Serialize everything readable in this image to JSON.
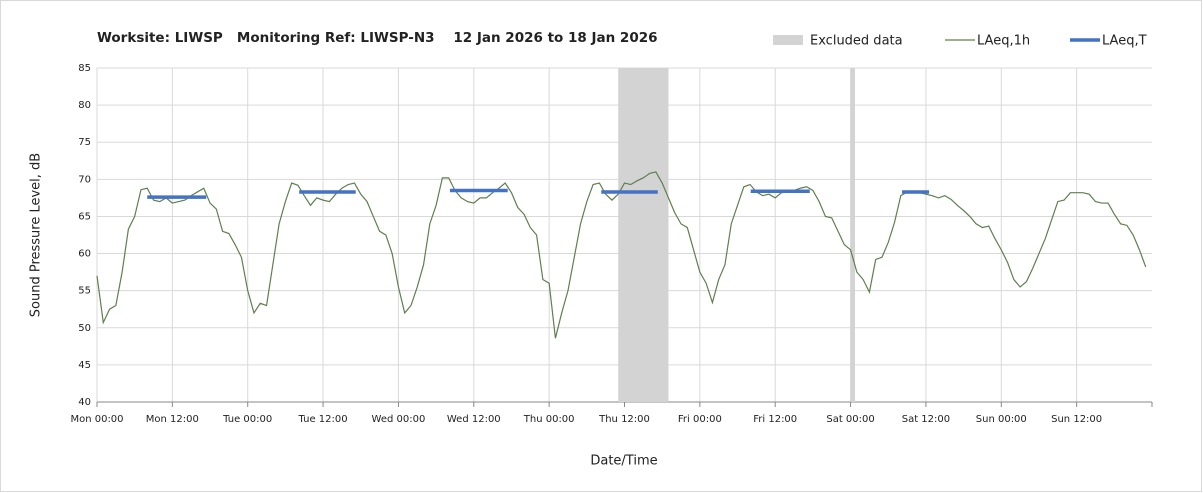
{
  "chart_data": {
    "type": "line",
    "title": "Worksite: LIWSP   Monitoring Ref: LIWSP-N3    12 Jan 2026 to 18 Jan 2026",
    "xlabel": "Date/Time",
    "ylabel": "Sound Pressure Level, dB",
    "xlim": [
      0,
      168
    ],
    "ylim": [
      40,
      85
    ],
    "yticks": [
      40,
      45,
      50,
      55,
      60,
      65,
      70,
      75,
      80,
      85
    ],
    "xticks": [
      {
        "value": 0,
        "label": "Mon 00:00"
      },
      {
        "value": 12,
        "label": "Mon 12:00"
      },
      {
        "value": 24,
        "label": "Tue 00:00"
      },
      {
        "value": 36,
        "label": "Tue 12:00"
      },
      {
        "value": 48,
        "label": "Wed 00:00"
      },
      {
        "value": 60,
        "label": "Wed 12:00"
      },
      {
        "value": 72,
        "label": "Thu 00:00"
      },
      {
        "value": 84,
        "label": "Thu 12:00"
      },
      {
        "value": 96,
        "label": "Fri 00:00"
      },
      {
        "value": 108,
        "label": "Fri 12:00"
      },
      {
        "value": 120,
        "label": "Sat 00:00"
      },
      {
        "value": 132,
        "label": "Sat 12:00"
      },
      {
        "value": 144,
        "label": "Sun 00:00"
      },
      {
        "value": 156,
        "label": "Sun 12:00"
      }
    ],
    "grid": true,
    "excluded": {
      "name": "Excluded data",
      "color": "#d3d3d3",
      "ranges": [
        [
          83,
          91
        ],
        [
          120,
          120.7
        ]
      ]
    },
    "series": [
      {
        "name": "LAeq,1h",
        "color": "#5f7f4f",
        "x": [
          0,
          1,
          2,
          3,
          4,
          5,
          6,
          7,
          8,
          9,
          10,
          11,
          12,
          13,
          14,
          15,
          16,
          17,
          18,
          19,
          20,
          21,
          22,
          23,
          24,
          25,
          26,
          27,
          28,
          29,
          30,
          31,
          32,
          33,
          34,
          35,
          36,
          37,
          38,
          39,
          40,
          41,
          42,
          43,
          44,
          45,
          46,
          47,
          48,
          49,
          50,
          51,
          52,
          53,
          54,
          55,
          56,
          57,
          58,
          59,
          60,
          61,
          62,
          63,
          64,
          65,
          66,
          67,
          68,
          69,
          70,
          71,
          72,
          73,
          74,
          75,
          76,
          77,
          78,
          79,
          80,
          81,
          82,
          83,
          84,
          85,
          86,
          87,
          88,
          89,
          90,
          91,
          92,
          93,
          94,
          95,
          96,
          97,
          98,
          99,
          100,
          101,
          102,
          103,
          104,
          105,
          106,
          107,
          108,
          109,
          110,
          111,
          112,
          113,
          114,
          115,
          116,
          117,
          118,
          119,
          120,
          121,
          122,
          123,
          124,
          125,
          126,
          127,
          128,
          129,
          130,
          131,
          132,
          133,
          134,
          135,
          136,
          137,
          138,
          139,
          140,
          141,
          142,
          143,
          144,
          145,
          146,
          147,
          148,
          149,
          150,
          151,
          152,
          153,
          154,
          155,
          156,
          157,
          158,
          159,
          160,
          161,
          162,
          163,
          164,
          165,
          166,
          167
        ],
        "values": [
          57,
          50.7,
          52.5,
          53,
          57.5,
          63.3,
          65,
          68.6,
          68.8,
          67.2,
          67,
          67.5,
          66.8,
          67,
          67.2,
          67.8,
          68.3,
          68.8,
          66.8,
          66,
          63,
          62.7,
          61.2,
          59.5,
          55,
          52,
          53.3,
          53,
          58.5,
          64,
          67,
          69.5,
          69.2,
          67.8,
          66.5,
          67.5,
          67.2,
          67,
          68,
          68.8,
          69.3,
          69.5,
          68,
          67,
          65,
          63,
          62.5,
          60,
          55.5,
          52,
          53,
          55.5,
          58.5,
          64,
          66.5,
          70.2,
          70.2,
          68.5,
          67.5,
          67,
          66.8,
          67.5,
          67.5,
          68.2,
          68.8,
          69.5,
          68.2,
          66.2,
          65.3,
          63.5,
          62.5,
          56.5,
          56,
          48.6,
          52,
          55,
          59.5,
          64,
          67,
          69.3,
          69.5,
          68,
          67.2,
          68,
          69.5,
          69.3,
          69.8,
          70.2,
          70.8,
          71,
          69.5,
          67.5,
          65.5,
          64,
          63.5,
          60.5,
          57.5,
          56,
          53.4,
          56.5,
          58.5,
          64,
          66.5,
          69,
          69.3,
          68.3,
          67.8,
          68,
          67.5,
          68.2,
          68.3,
          68.5,
          68.8,
          69,
          68.5,
          67,
          65,
          64.8,
          63,
          61.2,
          60.5,
          57.5,
          56.5,
          54.8,
          59.2,
          59.5,
          61.5,
          64.2,
          67.8,
          68.3,
          68.3,
          68.2,
          68,
          67.8,
          67.5,
          67.8,
          67.3,
          66.5,
          65.8,
          65,
          64,
          63.5,
          63.7,
          62,
          60.5,
          58.8,
          56.5,
          55.5,
          56.2,
          58,
          60,
          62,
          64.5,
          67,
          67.2,
          68.2,
          68.2,
          68.2,
          68,
          67,
          66.8,
          66.8,
          65.3,
          64,
          63.8,
          62.5,
          60.5,
          58.2
        ]
      },
      {
        "name": "LAeq,T",
        "color": "#4472c4",
        "segments": [
          {
            "x": [
              8,
              17.4
            ],
            "value": 67.6
          },
          {
            "x": [
              32.2,
              41.2
            ],
            "value": 68.3
          },
          {
            "x": [
              56.2,
              65.4
            ],
            "value": 68.5
          },
          {
            "x": [
              80.3,
              89.3
            ],
            "value": 68.3
          },
          {
            "x": [
              104.1,
              113.5
            ],
            "value": 68.4
          },
          {
            "x": [
              128.2,
              132.5
            ],
            "value": 68.3
          }
        ]
      }
    ]
  }
}
